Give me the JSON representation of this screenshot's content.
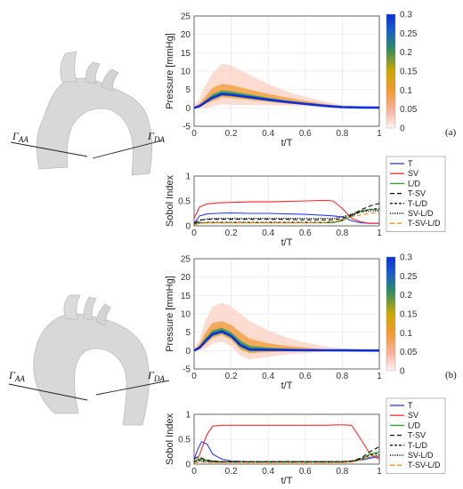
{
  "panels": [
    {
      "letter": "(a)",
      "gamma_left_main": "Γ",
      "gamma_left_sub": "AA",
      "gamma_right_main": "Γ",
      "gamma_right_sub": "DA"
    },
    {
      "letter": "(b)",
      "gamma_left_main": "Γ",
      "gamma_left_sub": "AA",
      "gamma_right_main": "Γ",
      "gamma_right_sub": "DA"
    }
  ],
  "colors": {
    "T": "#2b3cff",
    "SV": "#ff2a2a",
    "LD": "#22aa22",
    "T-SV": "#111111",
    "T-L/D": "#111111",
    "SV-L/D": "#111111",
    "T-SV-L/D": "#ff8c1a",
    "aorta": "#d9d9d9"
  },
  "chart_data": [
    {
      "type": "area",
      "name_note": "pressure density plot (a)",
      "xlabel": "t/T",
      "ylabel": "Pressure [mmHg]",
      "xlim": [
        0,
        1
      ],
      "ylim": [
        -5,
        25
      ],
      "xticks": [
        "0",
        "0.2",
        "0.4",
        "0.6",
        "0.8",
        "1"
      ],
      "yticks": [
        "-5",
        "0",
        "5",
        "10",
        "15",
        "20",
        "25"
      ],
      "colorbar_ticks": [
        "0",
        "0.05",
        "0.1",
        "0.15",
        "0.2",
        "0.25",
        "0.3"
      ],
      "colorbar_range": [
        0,
        0.3
      ],
      "t": [
        0,
        0.03,
        0.06,
        0.1,
        0.15,
        0.2,
        0.3,
        0.4,
        0.5,
        0.6,
        0.7,
        0.8,
        0.85,
        0.9,
        1.0
      ],
      "mean": [
        0,
        0.5,
        1.5,
        2.8,
        3.8,
        3.6,
        2.9,
        2.2,
        1.6,
        1.1,
        0.6,
        0.2,
        0.15,
        0.1,
        0.05
      ],
      "band_outer": [
        0.5,
        2.5,
        6,
        9.5,
        12,
        11.5,
        9,
        6.5,
        4.5,
        3,
        1.8,
        0.8,
        0.5,
        0.3,
        0.2
      ],
      "band_mid": [
        0.2,
        1.2,
        3,
        5.5,
        6.5,
        6.2,
        5,
        3.8,
        2.8,
        1.9,
        1.1,
        0.4,
        0.3,
        0.2,
        0.1
      ]
    },
    {
      "type": "line",
      "name_note": "Sobol indices (a)",
      "xlabel": "t/T",
      "ylabel": "Sobol Index",
      "xlim": [
        0,
        1
      ],
      "ylim": [
        0,
        1
      ],
      "xticks": [
        "0",
        "0.2",
        "0.4",
        "0.6",
        "0.8",
        "1"
      ],
      "yticks": [
        "0",
        "0.5",
        "1"
      ],
      "x": [
        0,
        0.03,
        0.07,
        0.12,
        0.2,
        0.3,
        0.4,
        0.5,
        0.6,
        0.7,
        0.75,
        0.8,
        0.85,
        0.9,
        0.95,
        1.0
      ],
      "series": [
        {
          "name": "T",
          "values": [
            0.05,
            0.2,
            0.24,
            0.25,
            0.26,
            0.25,
            0.25,
            0.24,
            0.23,
            0.21,
            0.2,
            0.18,
            0.1,
            0.06,
            0.05,
            0.05
          ]
        },
        {
          "name": "SV",
          "values": [
            0.15,
            0.38,
            0.44,
            0.46,
            0.47,
            0.48,
            0.48,
            0.49,
            0.5,
            0.51,
            0.5,
            0.35,
            0.15,
            0.08,
            0.05,
            0.05
          ]
        },
        {
          "name": "L/D",
          "values": [
            0.05,
            0.06,
            0.06,
            0.06,
            0.06,
            0.06,
            0.06,
            0.06,
            0.06,
            0.06,
            0.06,
            0.1,
            0.2,
            0.3,
            0.33,
            0.32
          ]
        },
        {
          "name": "T-SV",
          "values": [
            0.05,
            0.12,
            0.13,
            0.13,
            0.13,
            0.13,
            0.13,
            0.13,
            0.12,
            0.12,
            0.12,
            0.15,
            0.22,
            0.32,
            0.4,
            0.45
          ]
        },
        {
          "name": "T-L/D",
          "values": [
            0.02,
            0.06,
            0.07,
            0.07,
            0.07,
            0.07,
            0.07,
            0.07,
            0.07,
            0.07,
            0.08,
            0.12,
            0.2,
            0.28,
            0.33,
            0.35
          ]
        },
        {
          "name": "SV-L/D",
          "values": [
            0.03,
            0.1,
            0.14,
            0.15,
            0.15,
            0.15,
            0.15,
            0.15,
            0.15,
            0.15,
            0.15,
            0.18,
            0.24,
            0.28,
            0.3,
            0.3
          ]
        },
        {
          "name": "T-SV-L/D",
          "values": [
            0.02,
            0.05,
            0.06,
            0.06,
            0.06,
            0.06,
            0.06,
            0.06,
            0.06,
            0.07,
            0.08,
            0.12,
            0.18,
            0.22,
            0.25,
            0.26
          ]
        }
      ]
    },
    {
      "type": "area",
      "name_note": "pressure density plot (b)",
      "xlabel": "t/T",
      "ylabel": "Pressure [mmHg]",
      "xlim": [
        0,
        1
      ],
      "ylim": [
        -5,
        25
      ],
      "xticks": [
        "0",
        "0.2",
        "0.4",
        "0.6",
        "0.8",
        "1"
      ],
      "yticks": [
        "-5",
        "0",
        "5",
        "10",
        "15",
        "20",
        "25"
      ],
      "colorbar_ticks": [
        "0",
        "0.05",
        "0.1",
        "0.15",
        "0.2",
        "0.25",
        "0.3"
      ],
      "colorbar_range": [
        0,
        0.3
      ],
      "t": [
        0,
        0.03,
        0.06,
        0.1,
        0.15,
        0.2,
        0.25,
        0.3,
        0.4,
        0.5,
        0.6,
        0.7,
        0.8,
        0.9,
        1.0
      ],
      "mean": [
        0,
        0.8,
        2.5,
        4.5,
        5.2,
        4.0,
        1.5,
        0.3,
        0.2,
        0.15,
        0.1,
        0.08,
        0.05,
        0.03,
        0.02
      ],
      "band_outer": [
        0.5,
        3,
        8,
        12,
        13,
        12,
        10,
        8,
        5.5,
        3.5,
        2.2,
        1.2,
        0.6,
        0.3,
        0.2
      ],
      "band_mid": [
        0.2,
        1.8,
        5,
        7.5,
        8,
        7,
        5,
        3.2,
        2,
        1.3,
        0.8,
        0.4,
        0.2,
        0.1,
        0.05
      ]
    },
    {
      "type": "line",
      "name_note": "Sobol indices (b)",
      "xlabel": "t/T",
      "ylabel": "Sobol Index",
      "xlim": [
        0,
        1
      ],
      "ylim": [
        0,
        1
      ],
      "xticks": [
        "0",
        "0.2",
        "0.4",
        "0.6",
        "0.8",
        "1"
      ],
      "yticks": [
        "0",
        "0.5",
        "1"
      ],
      "x": [
        0,
        0.02,
        0.04,
        0.07,
        0.1,
        0.15,
        0.2,
        0.3,
        0.4,
        0.5,
        0.6,
        0.7,
        0.8,
        0.85,
        0.9,
        0.95,
        1.0
      ],
      "series": [
        {
          "name": "T",
          "values": [
            0.1,
            0.3,
            0.45,
            0.4,
            0.2,
            0.1,
            0.06,
            0.05,
            0.05,
            0.05,
            0.05,
            0.05,
            0.05,
            0.06,
            0.08,
            0.12,
            0.15
          ]
        },
        {
          "name": "SV",
          "values": [
            0.05,
            0.1,
            0.3,
            0.6,
            0.76,
            0.78,
            0.78,
            0.78,
            0.78,
            0.78,
            0.78,
            0.78,
            0.79,
            0.78,
            0.5,
            0.2,
            0.1
          ]
        },
        {
          "name": "L/D",
          "values": [
            0.05,
            0.1,
            0.1,
            0.08,
            0.06,
            0.05,
            0.05,
            0.05,
            0.05,
            0.05,
            0.05,
            0.05,
            0.05,
            0.06,
            0.1,
            0.2,
            0.25
          ]
        },
        {
          "name": "T-SV",
          "values": [
            0.1,
            0.15,
            0.12,
            0.08,
            0.06,
            0.05,
            0.05,
            0.05,
            0.05,
            0.05,
            0.05,
            0.05,
            0.05,
            0.06,
            0.12,
            0.25,
            0.35
          ]
        },
        {
          "name": "T-L/D",
          "values": [
            0.05,
            0.08,
            0.08,
            0.06,
            0.05,
            0.04,
            0.04,
            0.04,
            0.04,
            0.04,
            0.04,
            0.04,
            0.04,
            0.05,
            0.1,
            0.18,
            0.22
          ]
        },
        {
          "name": "SV-L/D",
          "values": [
            0.03,
            0.06,
            0.06,
            0.05,
            0.04,
            0.04,
            0.04,
            0.04,
            0.04,
            0.04,
            0.04,
            0.04,
            0.04,
            0.05,
            0.08,
            0.14,
            0.18
          ]
        },
        {
          "name": "T-SV-L/D",
          "values": [
            0.02,
            0.04,
            0.04,
            0.03,
            0.03,
            0.03,
            0.03,
            0.03,
            0.03,
            0.03,
            0.03,
            0.03,
            0.03,
            0.04,
            0.08,
            0.15,
            0.2
          ]
        }
      ]
    }
  ]
}
